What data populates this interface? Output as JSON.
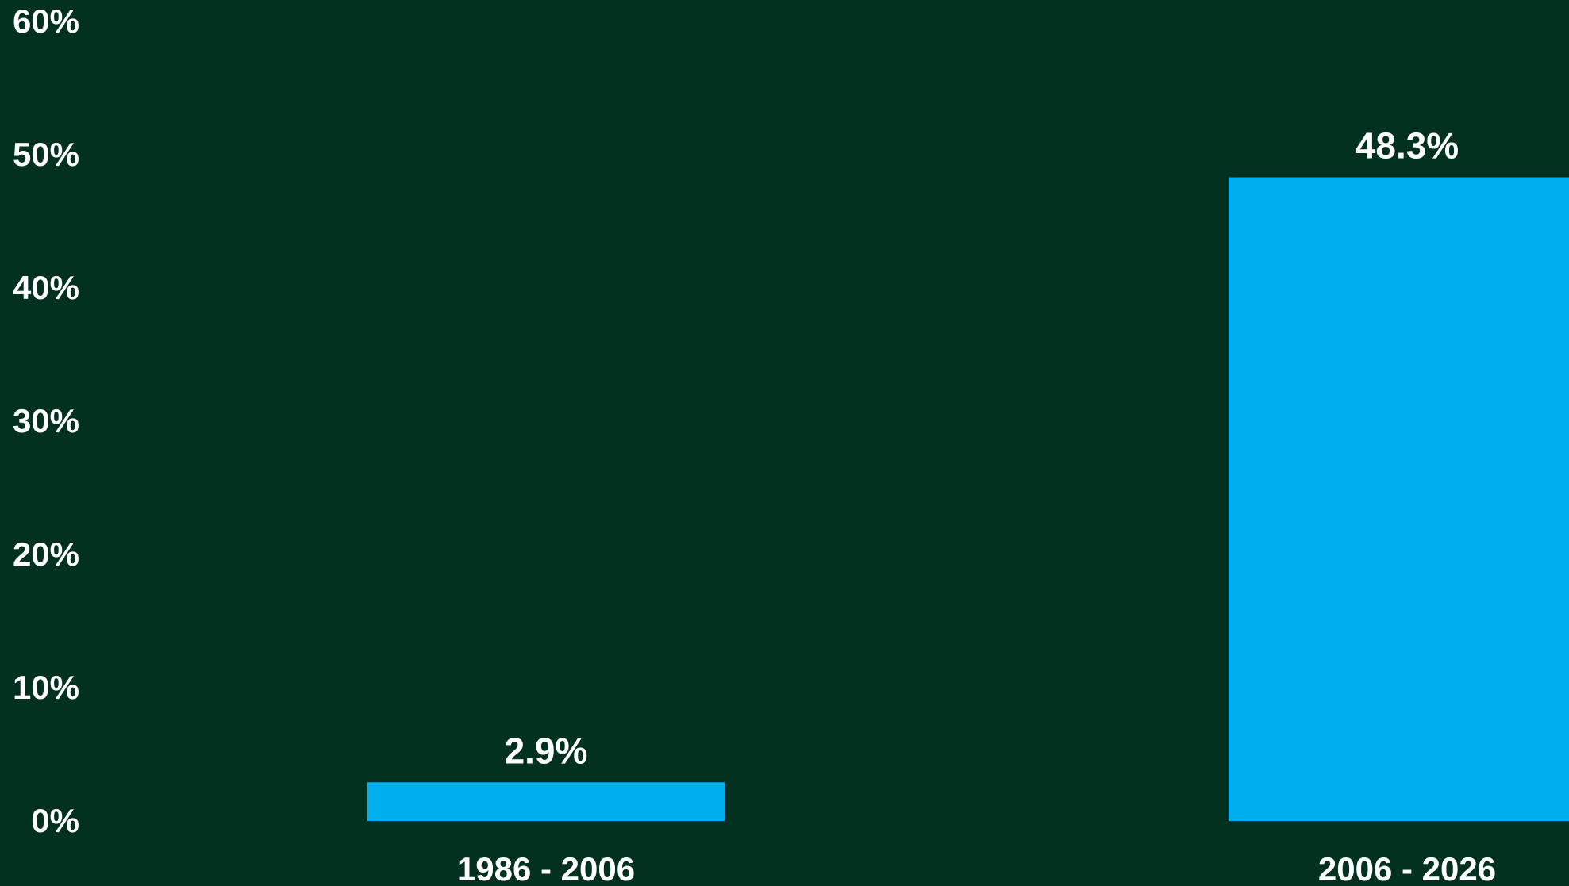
{
  "chart_data": {
    "type": "bar",
    "categories": [
      "1986 - 2006",
      "2006 - 2026"
    ],
    "series": [
      {
        "values": [
          2.9,
          48.3
        ],
        "value_labels": [
          "2.9%",
          "48.3%"
        ]
      }
    ],
    "title": "",
    "xlabel": "",
    "ylabel": "",
    "ylim": [
      0,
      60
    ],
    "y_ticks": [
      0,
      10,
      20,
      30,
      40,
      50,
      60
    ],
    "y_tick_labels": [
      "0%",
      "10%",
      "20%",
      "30%",
      "40%",
      "50%",
      "60%"
    ],
    "grid": false,
    "legend": "none",
    "colors": {
      "background": "#02321F",
      "bar": "#00B0EE",
      "text": "#FFFFFF"
    }
  }
}
